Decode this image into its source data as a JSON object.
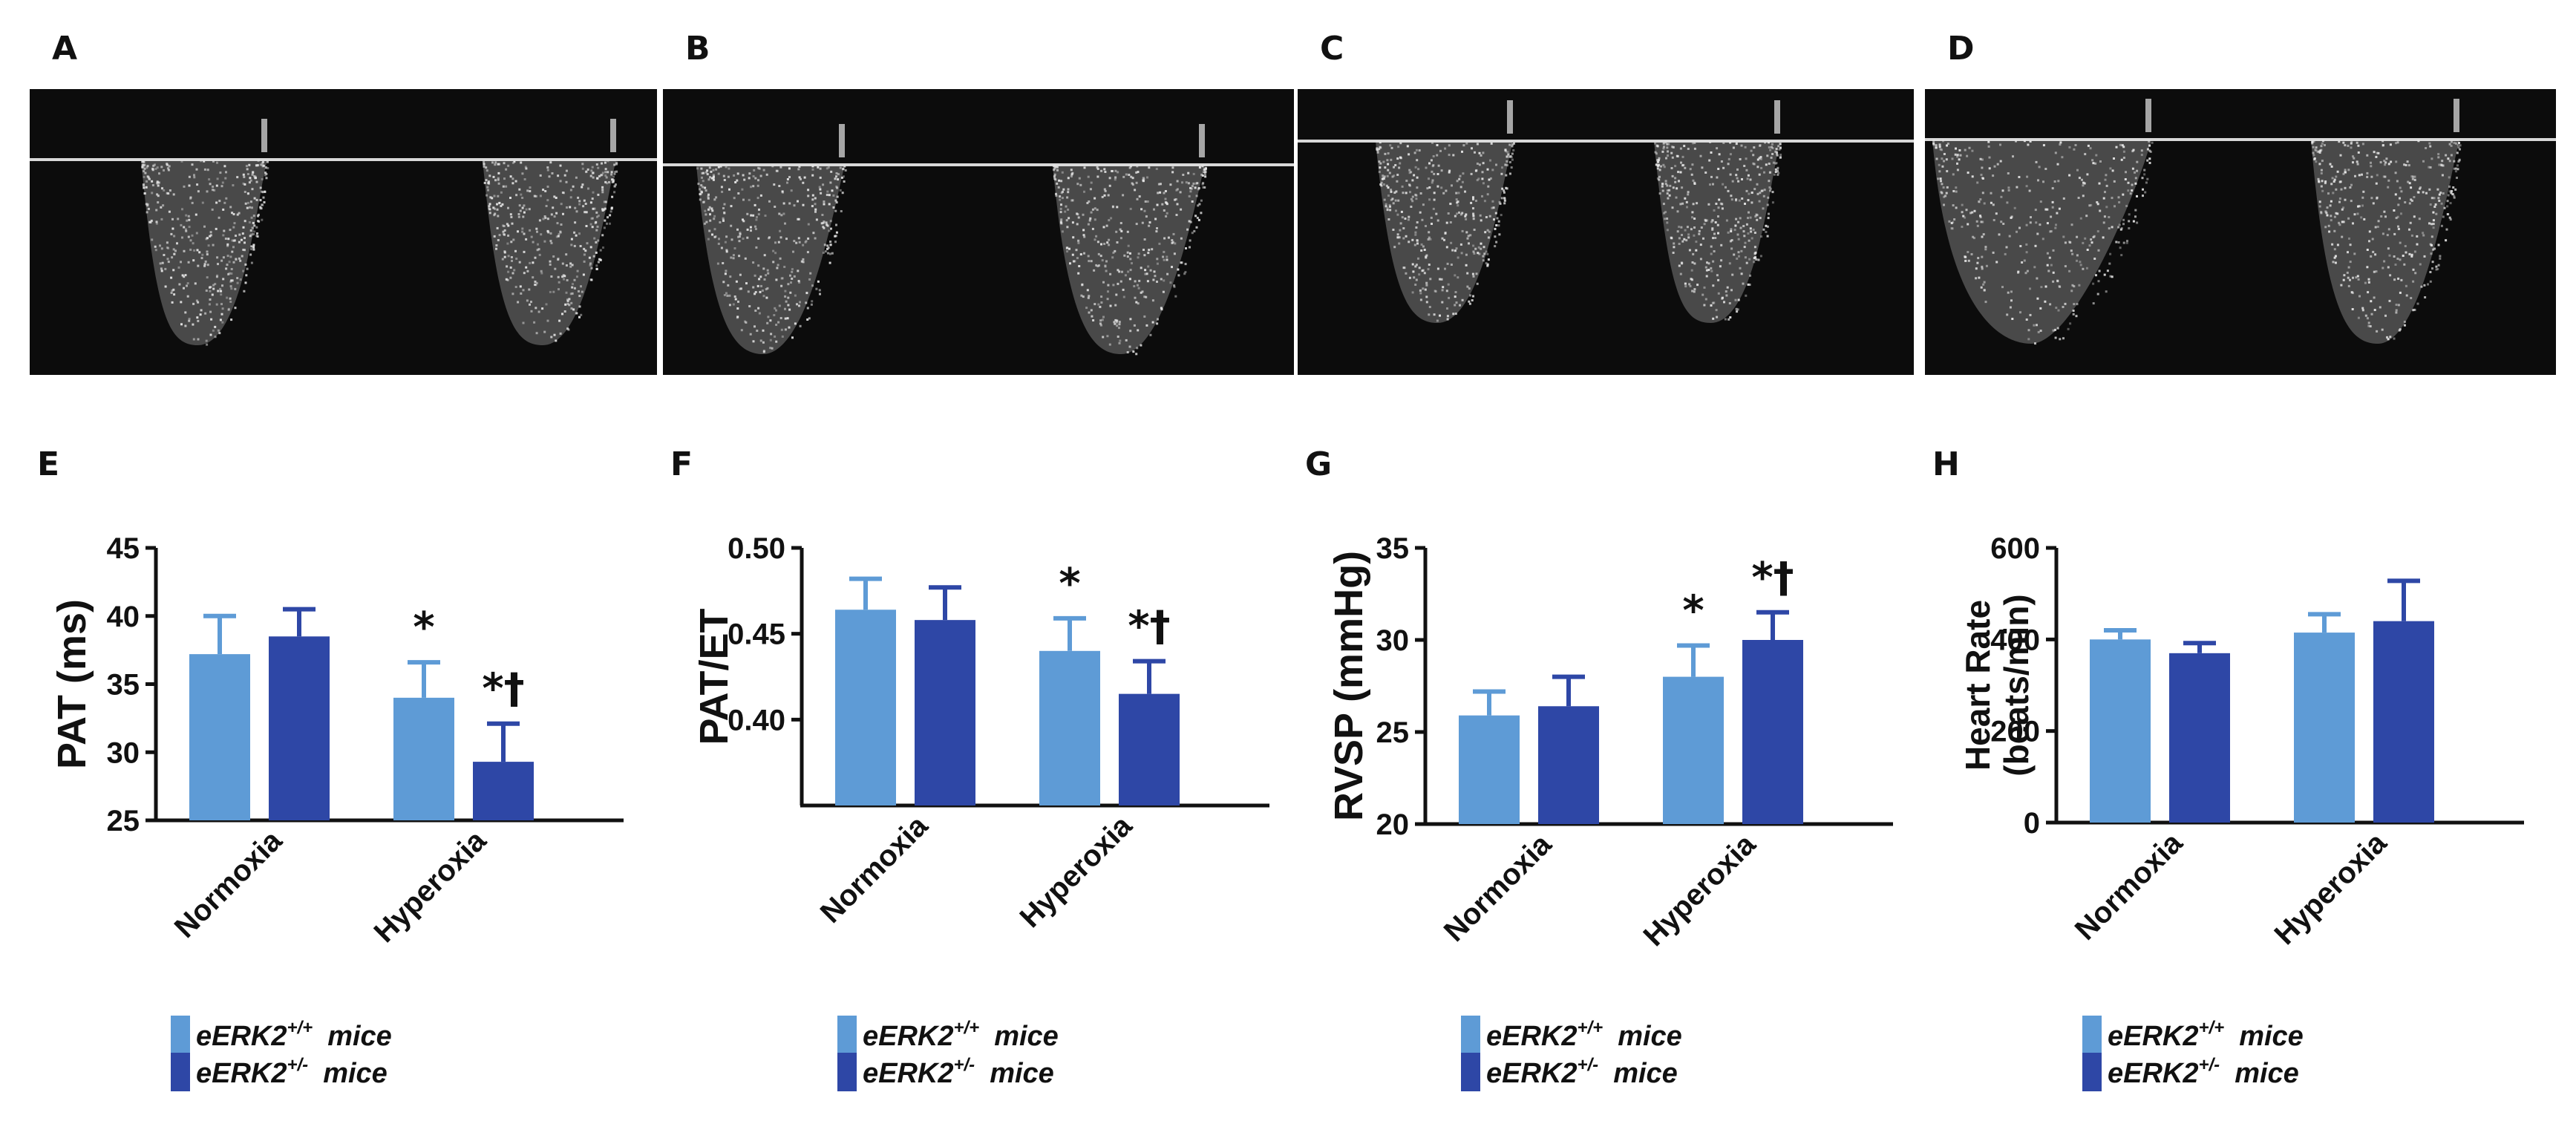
{
  "colors": {
    "wt": "#5e9bd6",
    "het": "#2e47a6",
    "axis": "#111111",
    "echo_bg": "#0c0c0c",
    "echo_line": "#d8d8d8",
    "echo_signal": "#e8e8e8"
  },
  "echo_panels": [
    {
      "letter": "A"
    },
    {
      "letter": "B"
    },
    {
      "letter": "C"
    },
    {
      "letter": "D"
    }
  ],
  "chart_data": [
    {
      "panel": "E",
      "type": "bar",
      "title": "",
      "ylabel": "PAT (ms)",
      "xlabel": "",
      "categories": [
        "Normoxia",
        "Hyperoxia"
      ],
      "ylim": [
        25,
        45
      ],
      "yticks": [
        "25",
        "30",
        "35",
        "40",
        "45"
      ],
      "ytick_values": [
        25,
        30,
        35,
        40,
        45
      ],
      "series": [
        {
          "name": "eERK2+/+ mice",
          "values": [
            37.2,
            34.0
          ],
          "errors": [
            2.8,
            2.6
          ],
          "sig": [
            "",
            "*"
          ]
        },
        {
          "name": "eERK2+/- mice",
          "values": [
            38.5,
            29.3
          ],
          "errors": [
            2.0,
            2.8
          ],
          "sig": [
            "",
            "*†"
          ]
        }
      ],
      "legend": [
        {
          "gene": "eERK2",
          "sup": "+/+",
          "suffix": "mice"
        },
        {
          "gene": "eERK2",
          "sup": "+/-",
          "suffix": "mice"
        }
      ]
    },
    {
      "panel": "F",
      "type": "bar",
      "title": "",
      "ylabel": "PAT/ET",
      "xlabel": "",
      "categories": [
        "Normoxia",
        "Hyperoxia"
      ],
      "ylim": [
        0.35,
        0.5
      ],
      "yticks": [
        "0.40",
        "0.45",
        "0.50"
      ],
      "ytick_values": [
        0.4,
        0.45,
        0.5
      ],
      "series": [
        {
          "name": "eERK2+/+ mice",
          "values": [
            0.464,
            0.44
          ],
          "errors": [
            0.018,
            0.019
          ],
          "sig": [
            "",
            "*"
          ]
        },
        {
          "name": "eERK2+/- mice",
          "values": [
            0.458,
            0.415
          ],
          "errors": [
            0.019,
            0.019
          ],
          "sig": [
            "",
            "*†"
          ]
        }
      ],
      "legend": [
        {
          "gene": "eERK2",
          "sup": "+/+",
          "suffix": "mice"
        },
        {
          "gene": "eERK2",
          "sup": "+/-",
          "suffix": "mice"
        }
      ]
    },
    {
      "panel": "G",
      "type": "bar",
      "title": "",
      "ylabel": "RVSP (mmHg)",
      "xlabel": "",
      "categories": [
        "Normoxia",
        "Hyperoxia"
      ],
      "ylim": [
        20,
        35
      ],
      "yticks": [
        "20",
        "25",
        "30",
        "35"
      ],
      "ytick_values": [
        20,
        25,
        30,
        35
      ],
      "series": [
        {
          "name": "eERK2+/+ mice",
          "values": [
            25.9,
            28.0
          ],
          "errors": [
            1.3,
            1.7
          ],
          "sig": [
            "",
            "*"
          ]
        },
        {
          "name": "eERK2+/- mice",
          "values": [
            26.4,
            30.0
          ],
          "errors": [
            1.6,
            1.5
          ],
          "sig": [
            "",
            "*†"
          ]
        }
      ],
      "legend": [
        {
          "gene": "eERK2",
          "sup": "+/+",
          "suffix": "mice"
        },
        {
          "gene": "eERK2",
          "sup": "+/-",
          "suffix": "mice"
        }
      ]
    },
    {
      "panel": "H",
      "type": "bar",
      "title": "",
      "ylabel": "Heart Rate",
      "ylabel2": "(beats/min)",
      "xlabel": "",
      "categories": [
        "Normoxia",
        "Hyperoxia"
      ],
      "ylim": [
        0,
        600
      ],
      "yticks": [
        "0",
        "200",
        "400",
        "600"
      ],
      "ytick_values": [
        0,
        200,
        400,
        600
      ],
      "series": [
        {
          "name": "eERK2+/+ mice",
          "values": [
            400,
            415
          ],
          "errors": [
            20,
            40
          ],
          "sig": [
            "",
            ""
          ]
        },
        {
          "name": "eERK2+/- mice",
          "values": [
            370,
            440
          ],
          "errors": [
            22,
            88
          ],
          "sig": [
            "",
            ""
          ]
        }
      ],
      "legend": [
        {
          "gene": "eERK2",
          "sup": "+/+",
          "suffix": "mice"
        },
        {
          "gene": "eERK2",
          "sup": "+/-",
          "suffix": "mice"
        }
      ]
    }
  ]
}
